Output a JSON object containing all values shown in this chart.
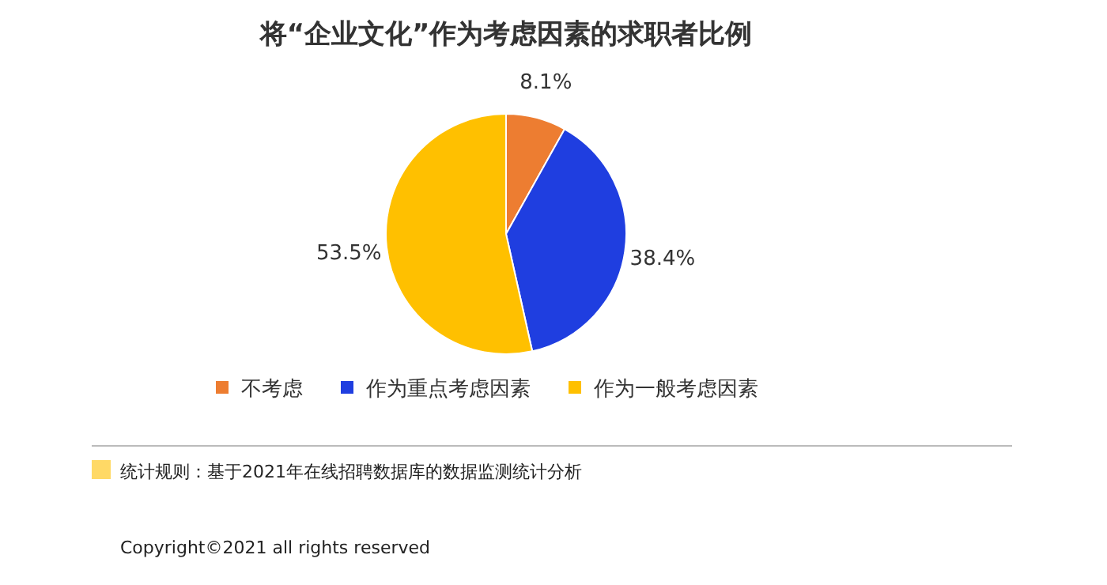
{
  "chart_data": {
    "type": "pie",
    "title": "将“企业文化”作为考虑因素的求职者比例",
    "categories": [
      "不考虑",
      "作为重点考虑因素",
      "作为一般考虑因素"
    ],
    "values": [
      8.1,
      38.4,
      53.5
    ],
    "colors": [
      "#ed7d31",
      "#1f3ee0",
      "#ffc000"
    ],
    "value_labels": [
      "8.1%",
      "38.4%",
      "53.5%"
    ],
    "legend": "bottom",
    "annotations": [
      "统计规则：基于2021年在线招聘数据库的数据监测统计分析",
      "Copyright©2021 all rights reserved"
    ]
  }
}
